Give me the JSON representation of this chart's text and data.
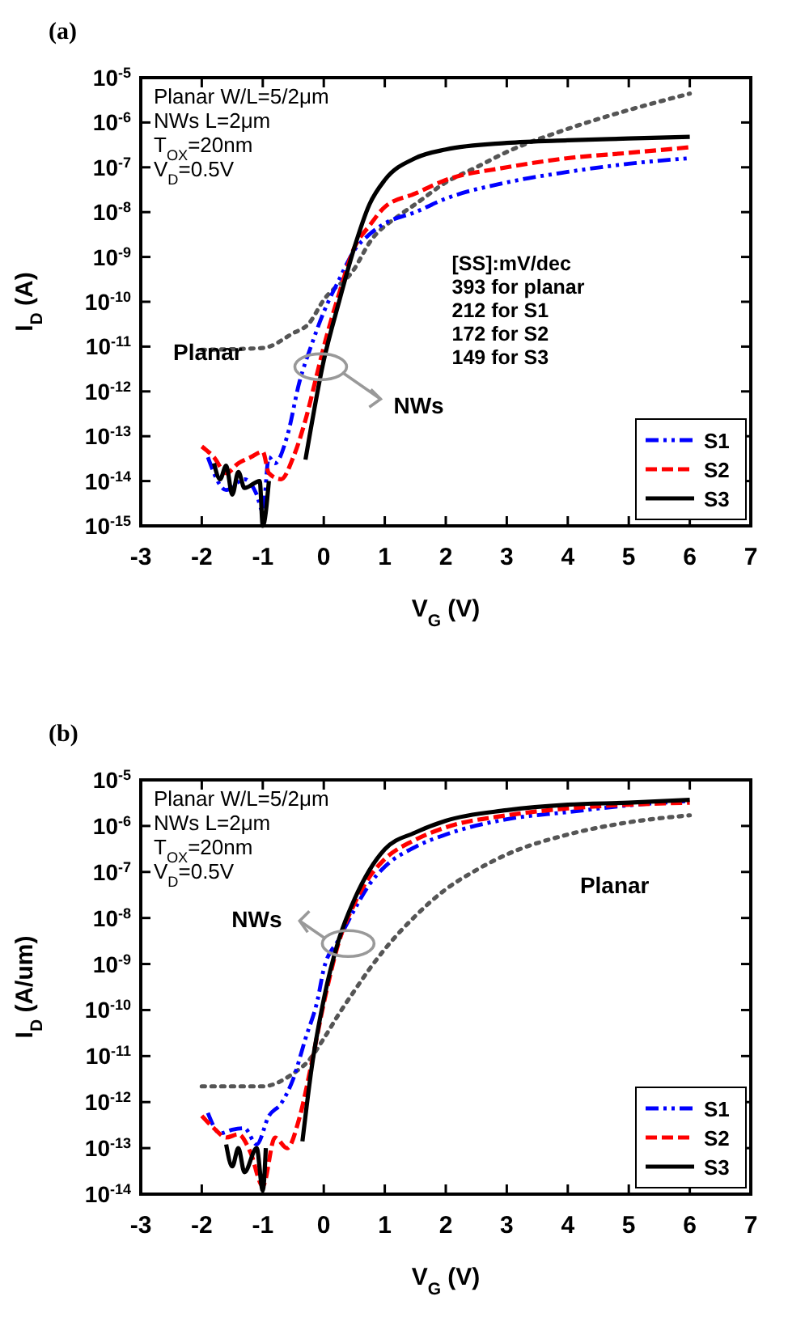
{
  "chart_data": [
    {
      "type": "line",
      "title": "(a)",
      "xlabel": "V$_{G}$ (V)",
      "ylabel": "I$_{D}$ (A)",
      "log": "y",
      "xlim": [
        -3,
        7
      ],
      "xticks": [
        -3,
        -2,
        -1,
        0,
        1,
        2,
        3,
        4,
        5,
        6,
        7
      ],
      "ylim": [
        1e-15,
        1e-05
      ],
      "yticks": [
        {
          "value": 1e-15,
          "label": "10$^{-15}$"
        },
        {
          "value": 1e-14,
          "label": "10$^{-14}$"
        },
        {
          "value": 1e-13,
          "label": "10$^{-13}$"
        },
        {
          "value": 1e-12,
          "label": "10$^{-12}$"
        },
        {
          "value": 1e-11,
          "label": "10$^{-11}$"
        },
        {
          "value": 1e-10,
          "label": "10$^{-10}$"
        },
        {
          "value": 1e-09,
          "label": "10$^{-9}$"
        },
        {
          "value": 1e-08,
          "label": "10$^{-8}$"
        },
        {
          "value": 1e-07,
          "label": "10$^{-7}$"
        },
        {
          "value": 1e-06,
          "label": "10$^{-6}$"
        },
        {
          "value": 1e-05,
          "label": "10$^{-5}$"
        }
      ],
      "legend": "bottom right",
      "grid": false,
      "series": [
        {
          "color": "#555555",
          "line_style": "dotted",
          "x": [
            -2,
            -1,
            -0.5,
            -0.25,
            0,
            0.5,
            0.75,
            1.25,
            1.5,
            2,
            2.5,
            3,
            4,
            5,
            6
          ],
          "values": [
            8.5e-12,
            9.3e-12,
            2e-11,
            3.2e-11,
            1.1e-10,
            5.4e-10,
            2.1e-09,
            8.7e-09,
            1.5e-08,
            4.6e-08,
            1e-07,
            2.2e-07,
            7.2e-07,
            1.9e-06,
            4.4e-06
          ]
        },
        {
          "name": "S1",
          "color": "#0000ff",
          "line_style": "dashdot",
          "x": [
            -1.9,
            -1.6,
            -1.3,
            -1.1,
            -1,
            -0.9,
            -0.8,
            -0.6,
            -0.4,
            -0.2,
            0,
            0.25,
            0.5,
            0.75,
            1,
            1.5,
            2,
            3,
            4,
            5,
            6
          ],
          "values": [
            3.4e-14,
            6.3e-15,
            1.1e-14,
            5e-15,
            2.1e-15,
            3.4e-14,
            2.5e-14,
            1e-13,
            1.6e-12,
            1.1e-11,
            5.9e-11,
            3.1e-10,
            1.4e-09,
            3.2e-09,
            5.6e-09,
            1e-08,
            2e-08,
            4.6e-08,
            7.9e-08,
            1.2e-07,
            1.6e-07
          ]
        },
        {
          "name": "S2",
          "color": "#ff0000",
          "line_style": "dashed",
          "x": [
            -2,
            -1.8,
            -1.6,
            -1.4,
            -1.2,
            -1,
            -0.9,
            -0.7,
            -0.5,
            -0.3,
            -0.1,
            0,
            0.25,
            0.5,
            0.75,
            1,
            1.5,
            2,
            3,
            4,
            5,
            6
          ],
          "values": [
            5.9e-14,
            3.4e-14,
            1.5e-14,
            2.5e-14,
            3.4e-14,
            4.5e-14,
            1.5e-14,
            1.1e-14,
            3.4e-14,
            2.3e-13,
            2.8e-12,
            9.8e-12,
            1.5e-10,
            1.6e-09,
            5e-09,
            1.3e-08,
            2.6e-08,
            5.2e-08,
            1e-07,
            1.6e-07,
            2.1e-07,
            2.8e-07
          ]
        },
        {
          "name": "S3",
          "color": "#000000",
          "line_style": "solid",
          "x": [
            -1.8,
            -1.7,
            -1.6,
            -1.5,
            -1.4,
            -1.3,
            -1.05,
            -1,
            -0.9,
            -0.6,
            -0.3,
            0,
            0.25,
            0.5,
            0.75,
            1,
            1.5,
            2,
            3,
            4,
            5,
            6
          ],
          "values": [
            2.5e-14,
            1.1e-14,
            2.2e-14,
            5e-15,
            1.6e-14,
            7e-15,
            1e-14,
            1e-15,
            1e-14,
            null,
            3e-14,
            4.9e-12,
            1e-10,
            1.6e-09,
            1.5e-08,
            5.2e-08,
            1.6e-07,
            2.5e-07,
            3.5e-07,
            4e-07,
            4.4e-07,
            4.8e-07
          ]
        }
      ],
      "annotations": [
        "Planar W/L=5/2μm",
        "NWs L=2μm",
        "T$_{OX}$=20nm",
        "V$_{D}$=0.5V",
        "[SS]:mV/dec",
        "393 for planar",
        "212 for S1",
        "172 for S2",
        "149 for S3",
        "Planar",
        "NWs"
      ]
    },
    {
      "type": "line",
      "title": "(b)",
      "xlabel": "V$_{G}$ (V)",
      "ylabel": "I$_{D}$ (A/um)",
      "log": "y",
      "xlim": [
        -3,
        7
      ],
      "xticks": [
        -3,
        -2,
        -1,
        0,
        1,
        2,
        3,
        4,
        5,
        6,
        7
      ],
      "ylim": [
        1e-14,
        1e-05
      ],
      "yticks": [
        {
          "value": 1e-14,
          "label": "10$^{-14}$"
        },
        {
          "value": 1e-13,
          "label": "10$^{-13}$"
        },
        {
          "value": 1e-12,
          "label": "10$^{-12}$"
        },
        {
          "value": 1e-11,
          "label": "10$^{-11}$"
        },
        {
          "value": 1e-10,
          "label": "10$^{-10}$"
        },
        {
          "value": 1e-09,
          "label": "10$^{-9}$"
        },
        {
          "value": 1e-08,
          "label": "10$^{-8}$"
        },
        {
          "value": 1e-07,
          "label": "10$^{-7}$"
        },
        {
          "value": 1e-06,
          "label": "10$^{-6}$"
        },
        {
          "value": 1e-05,
          "label": "10$^{-5}$"
        }
      ],
      "legend": "bottom right",
      "grid": false,
      "series": [
        {
          "color": "#555555",
          "line_style": "dotted",
          "x": [
            -2,
            -1,
            -0.5,
            -0.25,
            0,
            0.25,
            0.5,
            0.75,
            1,
            1.5,
            2,
            2.5,
            3,
            4,
            5,
            6
          ],
          "values": [
            2.2e-12,
            2.2e-12,
            4.2e-12,
            7.9e-12,
            2.4e-11,
            8.3e-11,
            2.6e-10,
            7.8e-10,
            2.1e-09,
            1.1e-08,
            4.2e-08,
            1.1e-07,
            2.4e-07,
            6.5e-07,
            1.2e-06,
            1.7e-06
          ]
        },
        {
          "name": "S1",
          "color": "#0000ff",
          "line_style": "dashdot",
          "x": [
            -1.9,
            -1.7,
            -1.5,
            -1.3,
            -1.1,
            -0.9,
            -0.7,
            -0.5,
            -0.3,
            -0.1,
            0,
            0.25,
            0.5,
            0.75,
            1,
            1.5,
            2,
            3,
            4,
            5,
            6
          ],
          "values": [
            5.8e-13,
            2.1e-13,
            2.5e-13,
            2.7e-13,
            1.2e-13,
            5e-13,
            9.3e-13,
            3.2e-12,
            2.4e-11,
            1.7e-10,
            7.8e-10,
            3.5e-09,
            1.5e-08,
            5.4e-08,
            1.3e-07,
            3.5e-07,
            6.5e-07,
            1.4e-06,
            2e-06,
            2.8e-06,
            3.5e-06
          ]
        },
        {
          "name": "S2",
          "color": "#ff0000",
          "line_style": "dashed",
          "x": [
            -2,
            -1.8,
            -1.6,
            -1.4,
            -1.2,
            -1,
            -0.8,
            -0.6,
            -0.4,
            -0.2,
            0,
            0.25,
            0.5,
            0.75,
            1,
            1.5,
            2,
            3,
            4,
            5,
            6
          ],
          "values": [
            5e-13,
            2.7e-13,
            1.7e-13,
            2e-13,
            8e-14,
            1.5e-14,
            1.7e-13,
            1e-13,
            4.5e-13,
            6.9e-12,
            1.4e-10,
            3.1e-09,
            2e-08,
            7.8e-08,
            1.9e-07,
            5e-07,
            9.3e-07,
            1.7e-06,
            2.4e-06,
            2.9e-06,
            3.2e-06
          ]
        },
        {
          "name": "S3",
          "color": "#000000",
          "line_style": "solid",
          "x": [
            -1.6,
            -1.5,
            -1.4,
            -1.3,
            -1.1,
            -1,
            -0.95,
            -0.6,
            -0.35,
            -0.2,
            0,
            0.25,
            0.5,
            0.75,
            1,
            1.5,
            2,
            3,
            4,
            5,
            6
          ],
          "values": [
            1.2e-13,
            4e-14,
            1e-13,
            3e-14,
            1e-13,
            1.2e-14,
            1e-13,
            null,
            1.4e-13,
            5.4e-12,
            1.7e-10,
            3.5e-09,
            2.5e-08,
            1.1e-07,
            3.1e-07,
            7.2e-07,
            1.3e-06,
            2.2e-06,
            2.9e-06,
            3.2e-06,
            3.7e-06
          ]
        }
      ],
      "annotations": [
        "Planar W/L=5/2μm",
        "NWs L=2μm",
        "T$_{OX}$=20nm",
        "V$_{D}$=0.5V",
        "Planar",
        "NWs"
      ]
    }
  ]
}
